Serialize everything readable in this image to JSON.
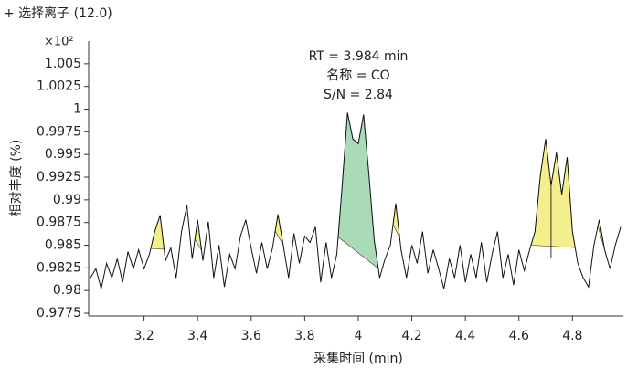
{
  "chart_data": {
    "type": "line",
    "title": "+ 选择离子 (12.0)",
    "y_multiplier": "×10²",
    "xlabel": "采集时间 (min)",
    "ylabel": "相对丰度 (%)",
    "annotations": [
      "RT = 3.984 min",
      "名称 = CO",
      "S/N = 2.84"
    ],
    "xlim": [
      3.0,
      4.99
    ],
    "ylim": [
      0.9772,
      1.0075
    ],
    "xticks": [
      3.2,
      3.4,
      3.6,
      3.8,
      4,
      4.2,
      4.4,
      4.6,
      4.8
    ],
    "yticks": [
      1.005,
      1.0025,
      1,
      0.9975,
      0.995,
      0.9925,
      0.99,
      0.9875,
      0.985,
      0.9825,
      0.98,
      0.9775
    ],
    "x": [
      3.0,
      3.02,
      3.04,
      3.06,
      3.08,
      3.1,
      3.12,
      3.14,
      3.16,
      3.18,
      3.2,
      3.22,
      3.24,
      3.26,
      3.28,
      3.3,
      3.32,
      3.34,
      3.36,
      3.38,
      3.4,
      3.42,
      3.44,
      3.46,
      3.48,
      3.5,
      3.52,
      3.54,
      3.56,
      3.58,
      3.6,
      3.62,
      3.64,
      3.66,
      3.68,
      3.7,
      3.72,
      3.74,
      3.76,
      3.78,
      3.8,
      3.82,
      3.84,
      3.86,
      3.88,
      3.9,
      3.92,
      3.94,
      3.96,
      3.98,
      4.0,
      4.02,
      4.04,
      4.06,
      4.08,
      4.1,
      4.12,
      4.14,
      4.16,
      4.18,
      4.2,
      4.22,
      4.24,
      4.26,
      4.28,
      4.3,
      4.32,
      4.34,
      4.36,
      4.38,
      4.4,
      4.42,
      4.44,
      4.46,
      4.48,
      4.5,
      4.52,
      4.54,
      4.56,
      4.58,
      4.6,
      4.62,
      4.64,
      4.66,
      4.68,
      4.7,
      4.72,
      4.74,
      4.76,
      4.78,
      4.8,
      4.82,
      4.84,
      4.86,
      4.88,
      4.9,
      4.92,
      4.94,
      4.96,
      4.98
    ],
    "series": [
      {
        "color": "#111111",
        "values": [
          0.9814,
          0.9824,
          0.9802,
          0.983,
          0.9814,
          0.9835,
          0.9809,
          0.9843,
          0.9824,
          0.9845,
          0.9824,
          0.984,
          0.9865,
          0.9883,
          0.9833,
          0.9847,
          0.9814,
          0.9865,
          0.9894,
          0.9835,
          0.9878,
          0.9833,
          0.9876,
          0.9814,
          0.985,
          0.9804,
          0.984,
          0.9824,
          0.986,
          0.9878,
          0.9847,
          0.9819,
          0.9853,
          0.9824,
          0.9847,
          0.9884,
          0.985,
          0.9814,
          0.9863,
          0.983,
          0.986,
          0.9853,
          0.987,
          0.9809,
          0.9853,
          0.9814,
          0.984,
          0.9916,
          0.9996,
          0.9967,
          0.9962,
          0.9994,
          0.9927,
          0.9855,
          0.9814,
          0.9835,
          0.985,
          0.9896,
          0.9845,
          0.9814,
          0.985,
          0.983,
          0.9865,
          0.9819,
          0.9845,
          0.9824,
          0.9802,
          0.9835,
          0.9814,
          0.985,
          0.9809,
          0.984,
          0.9814,
          0.9853,
          0.9809,
          0.984,
          0.9865,
          0.9814,
          0.984,
          0.9806,
          0.9845,
          0.9822,
          0.9845,
          0.9865,
          0.9927,
          0.9967,
          0.9916,
          0.9952,
          0.9906,
          0.9947,
          0.9865,
          0.983,
          0.9814,
          0.9804,
          0.985,
          0.9878,
          0.9845,
          0.9824,
          0.985,
          0.987
        ]
      }
    ],
    "peaks": [
      {
        "x": [
          3.225,
          3.275
        ],
        "color": "#f3ef8c"
      },
      {
        "x": [
          3.39,
          3.415
        ],
        "color": "#f3ef8c"
      },
      {
        "x": [
          3.69,
          3.72
        ],
        "color": "#f3ef8c"
      },
      {
        "x": [
          3.925,
          4.075
        ],
        "color": "#a9dbb8"
      },
      {
        "x": [
          4.13,
          4.155
        ],
        "color": "#f3ef8c"
      },
      {
        "x": [
          4.645,
          4.81
        ],
        "color": "#f3ef8c"
      },
      {
        "x": [
          4.895,
          4.93
        ],
        "color": "#f3ef8c"
      }
    ],
    "rt_marks": [
      4.72
    ]
  }
}
